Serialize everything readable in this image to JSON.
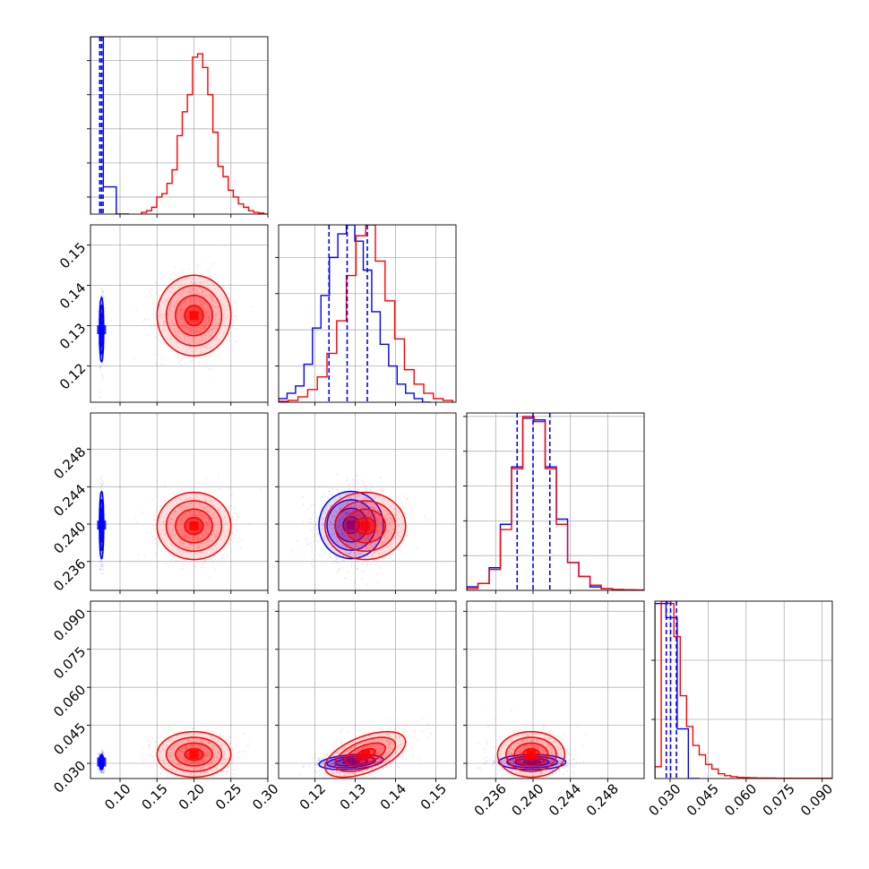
{
  "chart_data": {
    "type": "corner",
    "title": "",
    "grid": true,
    "series": [
      {
        "color": "#0000ff",
        "means": [
          0.075,
          0.129,
          0.2399,
          0.0305
        ],
        "sds": [
          0.0015,
          0.004,
          0.0018,
          0.0015
        ],
        "quantiles": [
          [
            0.0725,
            0.0748,
            0.0771
          ],
          [
            0.1235,
            0.128,
            0.133
          ],
          [
            0.2383,
            0.24,
            0.2418
          ],
          [
            0.0285,
            0.0302,
            0.0325
          ]
        ],
        "corr": [
          [
            1,
            0,
            0,
            0
          ],
          [
            0,
            1,
            0,
            0.3
          ],
          [
            0,
            0,
            1,
            0
          ],
          [
            0,
            0.3,
            0,
            1
          ]
        ]
      },
      {
        "color": "#ff0000",
        "means": [
          0.2,
          0.1325,
          0.2398,
          0.0335
        ],
        "sds": [
          0.025,
          0.005,
          0.0018,
          0.0045
        ],
        "quantiles": null,
        "corr": [
          [
            1,
            0,
            0,
            0
          ],
          [
            0,
            1,
            0,
            0.55
          ],
          [
            0,
            0,
            1,
            0
          ],
          [
            0,
            0.55,
            0,
            1
          ]
        ]
      }
    ],
    "axes": [
      {
        "range": [
          0.06,
          0.3
        ],
        "ticks": [
          "0.10",
          "0.15",
          "0.20",
          "0.25",
          "0.30"
        ]
      },
      {
        "range": [
          0.111,
          0.155
        ],
        "ticks": [
          "0.12",
          "0.13",
          "0.14",
          "0.15"
        ]
      },
      {
        "range": [
          0.2329,
          0.2519
        ],
        "ticks": [
          "0.236",
          "0.240",
          "0.244",
          "0.248"
        ]
      },
      {
        "range": [
          0.024,
          0.094
        ],
        "ticks": [
          "0.030",
          "0.045",
          "0.060",
          "0.075",
          "0.090"
        ]
      }
    ],
    "diag_ymax": [
      0.52,
      0.98,
      1.02,
      0.75
    ],
    "diag_yticks": [
      [
        0.05,
        0.15,
        0.25,
        0.35,
        0.45,
        0.55
      ],
      [
        0.2,
        0.4,
        0.6,
        0.8
      ],
      [
        0.2,
        0.4,
        0.6,
        0.8,
        1.0
      ],
      [
        0.25,
        0.5
      ]
    ],
    "histograms": {
      "0": [
        {
          "series": 0,
          "edges": [
            0.06,
            0.0774,
            0.0949,
            0.1123
          ],
          "values": [
            0.52,
            0.08,
            0
          ]
        },
        {
          "series": 1,
          "edges": [
            0.129,
            0.1359,
            0.1428,
            0.1497,
            0.1566,
            0.1635,
            0.1704,
            0.1773,
            0.1842,
            0.1911,
            0.198,
            0.2049,
            0.2118,
            0.2187,
            0.2256,
            0.2325,
            0.2394,
            0.2463,
            0.2532,
            0.2601,
            0.267,
            0.2739,
            0.2808,
            0.2877,
            0.2946,
            0.3
          ],
          "values": [
            0.005,
            0.01,
            0.02,
            0.05,
            0.06,
            0.09,
            0.13,
            0.23,
            0.3,
            0.35,
            0.46,
            0.47,
            0.43,
            0.35,
            0.24,
            0.14,
            0.11,
            0.07,
            0.05,
            0.03,
            0.02,
            0.01,
            0.005,
            0.003,
            0
          ]
        }
      ],
      "1": [
        {
          "series": 0,
          "edges": [
            0.111,
            0.1131,
            0.1152,
            0.1173,
            0.1194,
            0.1215,
            0.1236,
            0.1257,
            0.1278,
            0.1299,
            0.132,
            0.1341,
            0.1362,
            0.1383,
            0.1404,
            0.1425,
            0.1446,
            0.1467,
            0.1488
          ],
          "values": [
            0.02,
            0.05,
            0.09,
            0.21,
            0.41,
            0.59,
            0.8,
            0.93,
            0.98,
            0.89,
            0.73,
            0.5,
            0.32,
            0.2,
            0.1,
            0.05,
            0.02,
            0
          ]
        },
        {
          "series": 1,
          "edges": [
            0.111,
            0.1134,
            0.1158,
            0.1182,
            0.1206,
            0.123,
            0.1254,
            0.1278,
            0.1302,
            0.1326,
            0.135,
            0.1374,
            0.1398,
            0.1422,
            0.1446,
            0.147,
            0.1494,
            0.1518,
            0.1542
          ],
          "values": [
            0.005,
            0.01,
            0.03,
            0.07,
            0.14,
            0.27,
            0.45,
            0.7,
            0.92,
            0.98,
            0.78,
            0.56,
            0.35,
            0.18,
            0.1,
            0.05,
            0.02,
            0.01
          ]
        }
      ],
      "2": [
        {
          "series": 0,
          "edges": [
            0.2329,
            0.2341,
            0.2353,
            0.2365,
            0.2377,
            0.2389,
            0.2401,
            0.2413,
            0.2425,
            0.2437,
            0.2449,
            0.2461,
            0.2473,
            0.2485,
            0.2497,
            0.2509,
            0.2519
          ],
          "values": [
            0.02,
            0.04,
            0.13,
            0.38,
            0.71,
            0.99,
            0.98,
            0.71,
            0.41,
            0.16,
            0.08,
            0.02,
            0.01,
            0.005,
            0.003,
            0.002
          ]
        },
        {
          "series": 1,
          "edges": [
            0.2329,
            0.2341,
            0.2353,
            0.2365,
            0.2377,
            0.2389,
            0.2401,
            0.2413,
            0.2425,
            0.2437,
            0.2449,
            0.2461,
            0.2473,
            0.2485,
            0.2497,
            0.2509,
            0.2519
          ],
          "values": [
            0.01,
            0.04,
            0.12,
            0.35,
            0.7,
            1.0,
            0.97,
            0.7,
            0.38,
            0.16,
            0.08,
            0.03,
            0.01,
            0.005,
            0.003,
            0.002
          ]
        }
      ],
      "3": [
        {
          "series": 0,
          "edges": [
            0.024,
            0.0284,
            0.0328,
            0.0372,
            0.0416
          ],
          "values": [
            0.74,
            0.68,
            0.21,
            0
          ]
        },
        {
          "series": 1,
          "edges": [
            0.024,
            0.0265,
            0.029,
            0.0315,
            0.034,
            0.0365,
            0.039,
            0.0415,
            0.044,
            0.0465,
            0.049,
            0.0515,
            0.054,
            0.0565,
            0.059,
            0.0615,
            0.064,
            0.0665,
            0.069,
            0.0715,
            0.074,
            0.0765,
            0.079,
            0.0815,
            0.084,
            0.0865,
            0.089,
            0.0915,
            0.094
          ],
          "values": [
            0.05,
            0.75,
            0.74,
            0.6,
            0.35,
            0.22,
            0.14,
            0.1,
            0.06,
            0.04,
            0.02,
            0.012,
            0.008,
            0.005,
            0.004,
            0.003,
            0.002,
            0.002,
            0.002,
            0.001,
            0.001,
            0.001,
            0.001,
            0.001,
            0.001,
            0.001,
            0.001,
            0.001
          ]
        }
      ]
    }
  }
}
